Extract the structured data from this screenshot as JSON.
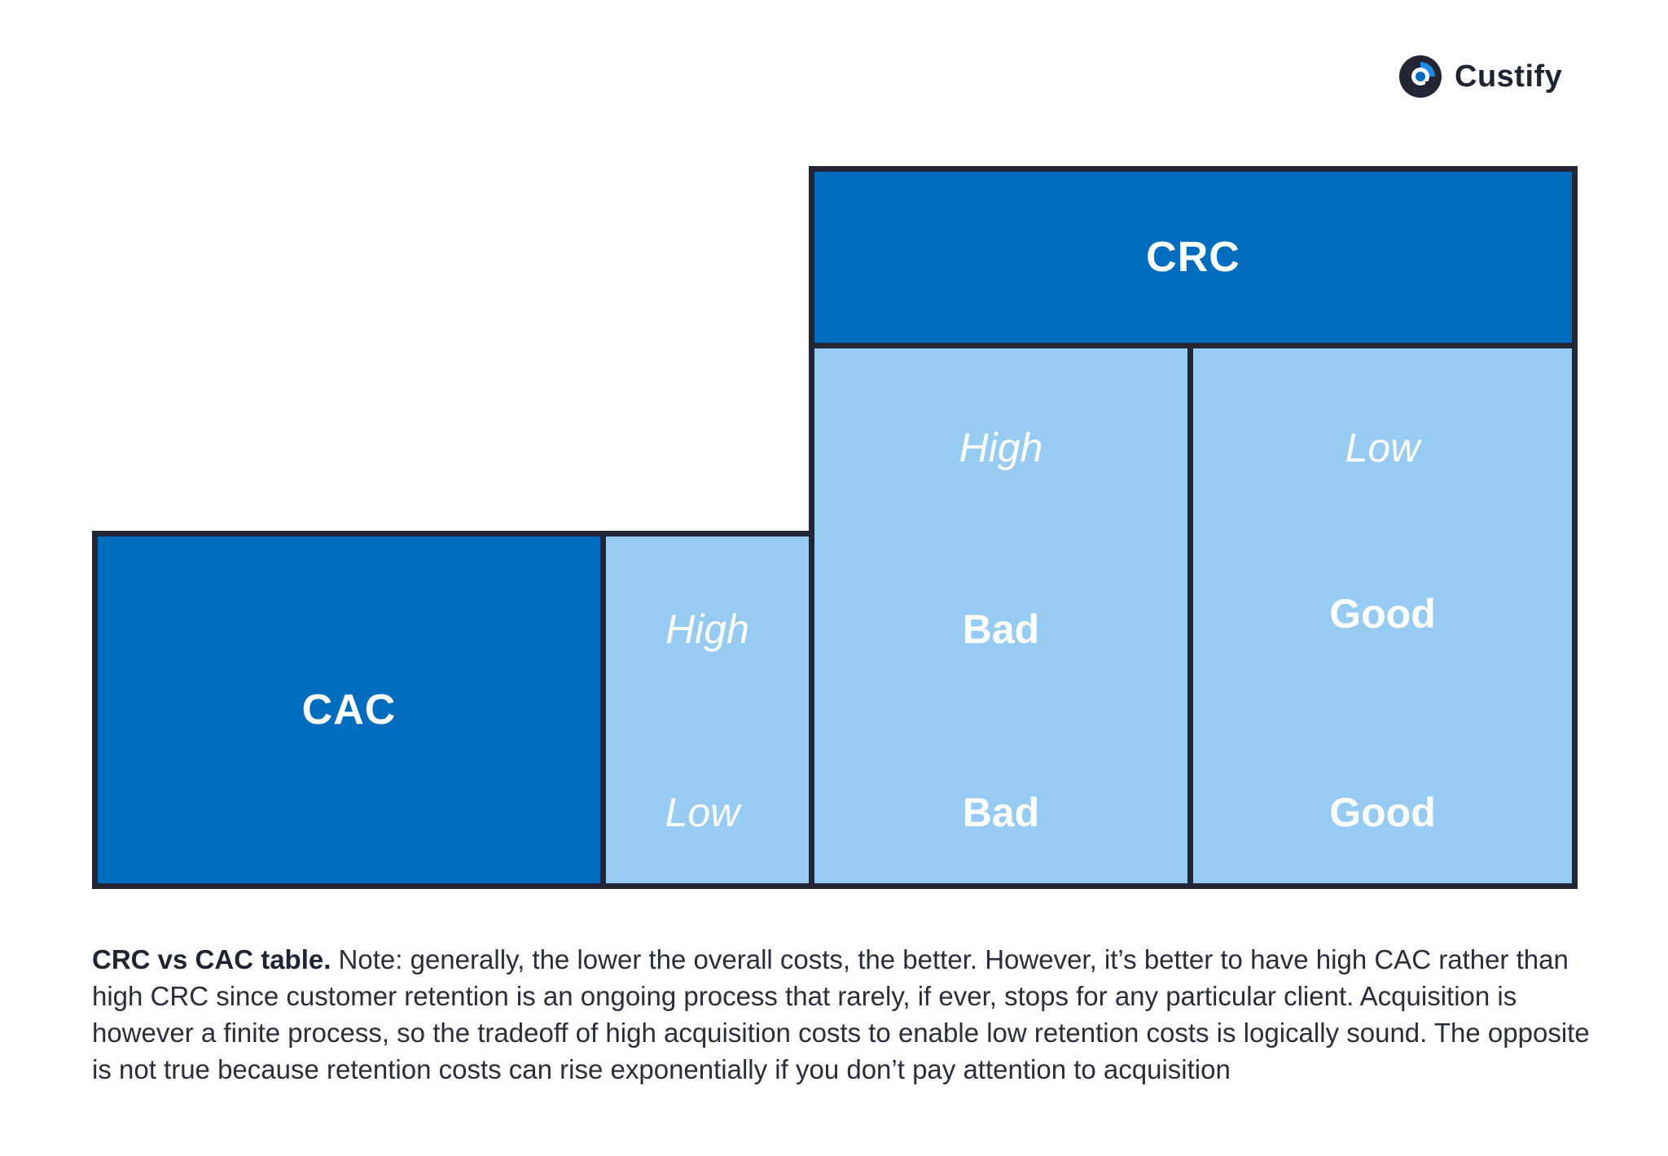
{
  "brand": {
    "name": "Custify",
    "accent_color": "#006cbe",
    "icon": "custify-logo-icon"
  },
  "diagram": {
    "crc_header": "CRC",
    "cac_header": "CAC",
    "crc_levels": [
      "High",
      "Low"
    ],
    "cac_levels": [
      "High",
      "Low"
    ],
    "cells": {
      "crc_high_cac_high": "Bad",
      "crc_high_cac_low": "Bad",
      "crc_low_cac_high": "Good",
      "crc_low_cac_low": "Good"
    },
    "colors": {
      "header": "#006cbe",
      "cell": "#98cbf2",
      "border": "#232634"
    }
  },
  "caption": {
    "title": "CRC vs CAC table.",
    "body": " Note: generally, the lower the overall costs, the better. However, it’s better to have high CAC rather than high CRC since customer retention is an ongoing process that rarely, if ever, stops for any particular client. Acquisition is however a finite process, so the tradeoff of high acquisition costs to enable low retention costs is logically sound. The opposite is not true because retention costs can rise exponentially if you don’t pay attention to acquisition"
  }
}
